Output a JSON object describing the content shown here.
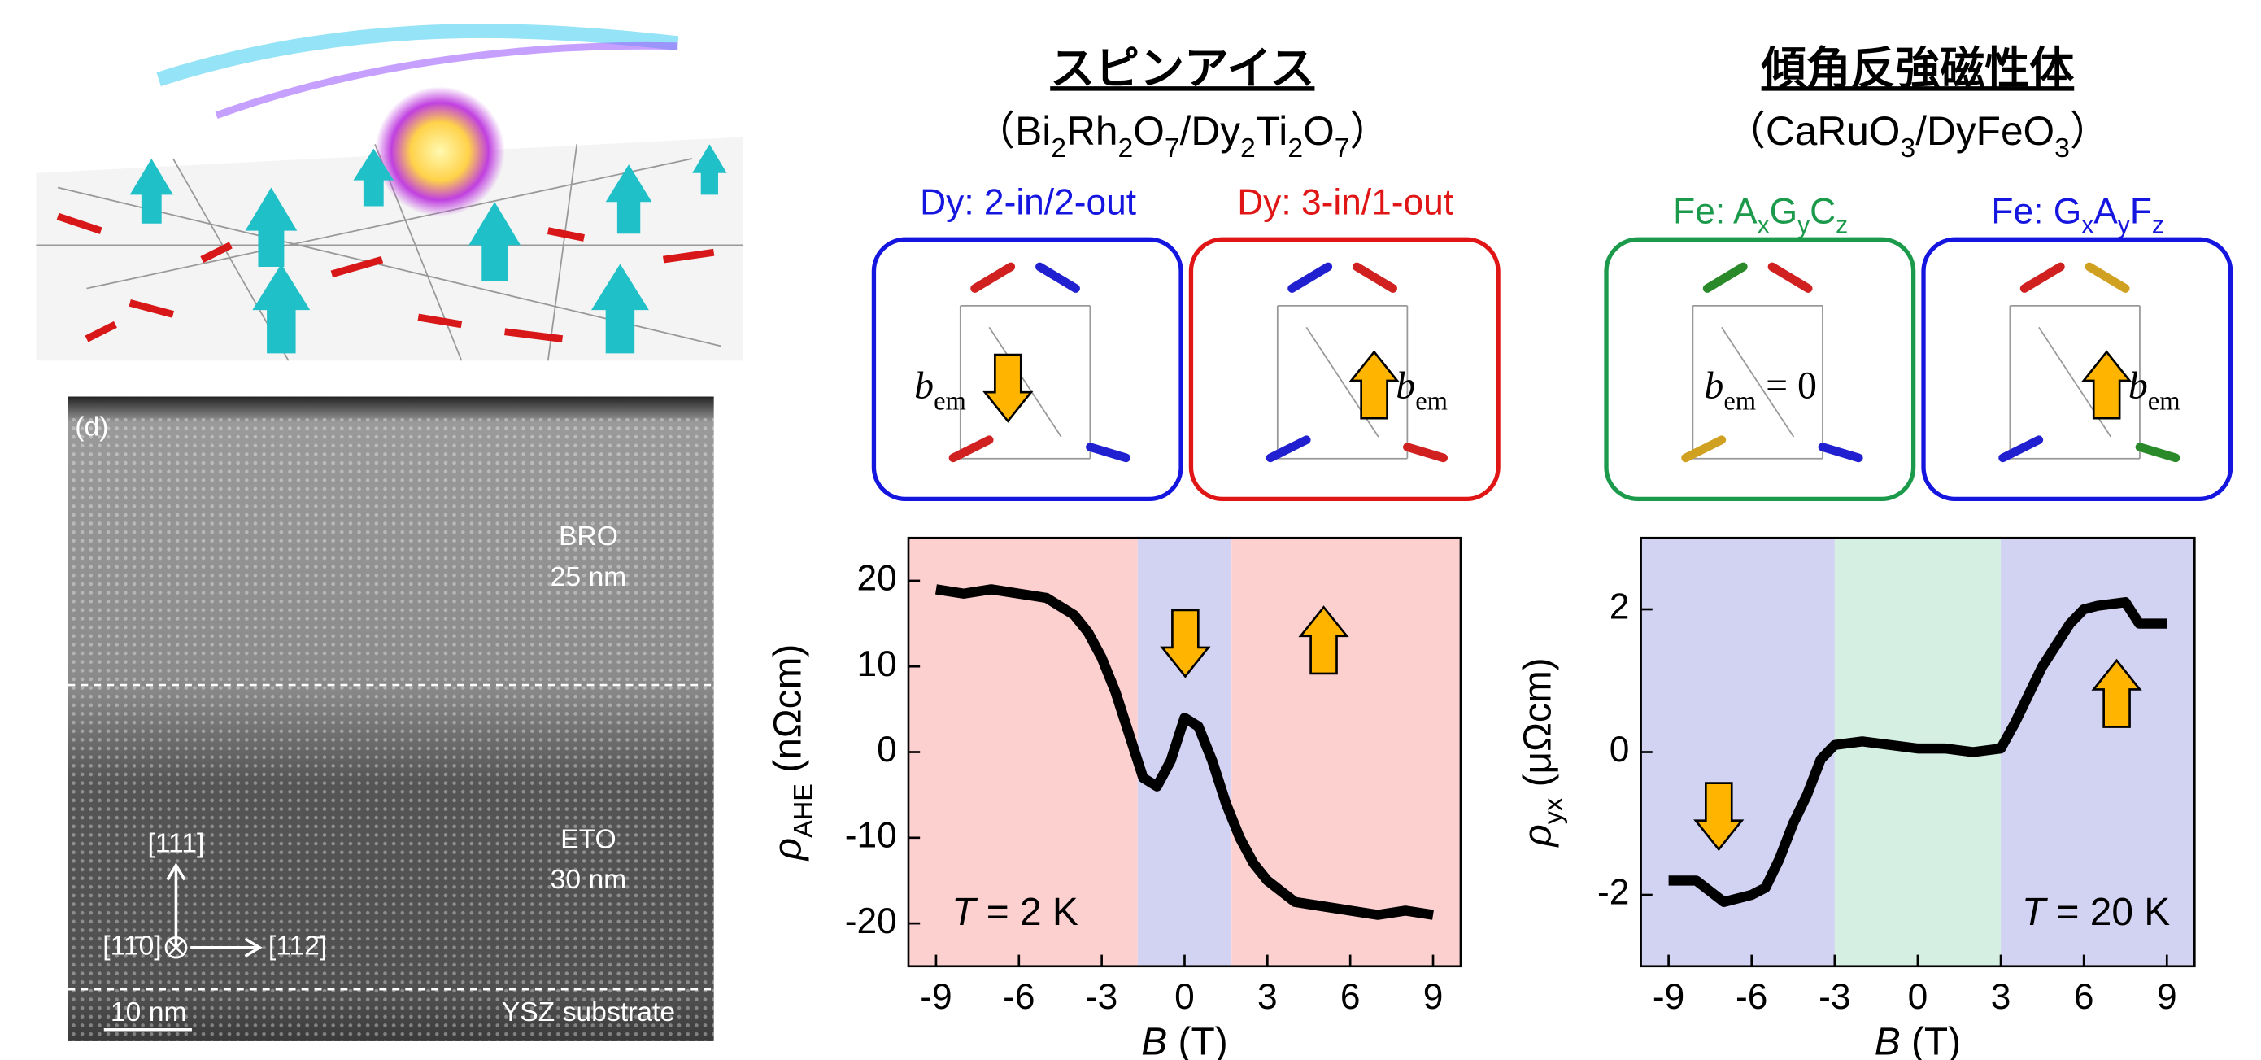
{
  "figure": {
    "micrograph": {
      "panel": "(d)",
      "layer1": "BRO",
      "layer1_thickness": "25 nm",
      "layer2": "ETO",
      "layer2_thickness": "30 nm",
      "substrate": "YSZ substrate",
      "scale_bar": "10 nm",
      "dir_up": "[111]",
      "dir_left": "[11̄0]",
      "dir_right": "[112̄]"
    },
    "groups": [
      {
        "title": "スピンアイス",
        "formula": [
          "（Bi",
          "2",
          "Rh",
          "2",
          "O",
          "7",
          "/Dy",
          "2",
          "Ti",
          "2",
          "O",
          "7",
          "）"
        ],
        "states": [
          {
            "label": [
              "Dy: 2-in/2-out"
            ],
            "color": "#1515e0",
            "bem": [
              "b",
              "em"
            ]
          },
          {
            "label": [
              "Dy: 3-in/1-out"
            ],
            "color": "#e01515",
            "bem": [
              "b",
              "em"
            ]
          }
        ]
      },
      {
        "title": "傾角反強磁性体",
        "formula": [
          "（CaRuO",
          "3",
          "/DyFeO",
          "3",
          "）"
        ],
        "states": [
          {
            "label": [
              "Fe: A",
              "x",
              "G",
              "y",
              "C",
              "z"
            ],
            "color": "#1a9a4a",
            "bem": [
              "b",
              "em",
              " = 0"
            ]
          },
          {
            "label": [
              "Fe: G",
              "x",
              "A",
              "y",
              "F",
              "z"
            ],
            "color": "#1515e0",
            "bem": [
              "b",
              "em"
            ]
          }
        ]
      }
    ]
  },
  "chart_data": [
    {
      "type": "line",
      "color": "#000000",
      "x": [
        -9,
        -8,
        -7,
        -6,
        -5,
        -4,
        -3.5,
        -3,
        -2.5,
        -2,
        -1.5,
        -1,
        -0.5,
        0,
        0.5,
        1,
        1.5,
        2,
        2.5,
        3,
        4,
        5,
        6,
        7,
        8,
        9
      ],
      "values": [
        19,
        18.5,
        19,
        18.5,
        18,
        16,
        14,
        11,
        7,
        2,
        -3,
        -4,
        -1,
        4,
        3,
        -1,
        -6,
        -10,
        -13,
        -15,
        -17.5,
        -18,
        -18.5,
        -19,
        -18.5,
        -19
      ],
      "xlim": [
        -10,
        10
      ],
      "ylim": [
        -25,
        25
      ],
      "xticks": [
        -9,
        -6,
        -3,
        0,
        3,
        6,
        9
      ],
      "yticks": [
        -20,
        -10,
        0,
        10,
        20
      ],
      "regions": [
        {
          "from": -10,
          "to": -1.7,
          "color": "#fdd0d0"
        },
        {
          "from": -1.7,
          "to": 1.7,
          "color": "#d2d2f3"
        },
        {
          "from": 1.7,
          "to": 10,
          "color": "#fdd0d0"
        }
      ],
      "ylabel": [
        "ρ",
        "AHE",
        " (nΩcm)"
      ],
      "xlabel": [
        "B",
        " (T)"
      ],
      "annotation": [
        "T",
        " = 2 K"
      ]
    },
    {
      "type": "line",
      "color": "#000000",
      "x": [
        -9,
        -8,
        -7,
        -6,
        -5.5,
        -5,
        -4.5,
        -4,
        -3.5,
        -3,
        -2,
        -1,
        0,
        1,
        2,
        3,
        3.5,
        4,
        4.5,
        5,
        5.5,
        6,
        6.5,
        7.5,
        8,
        9
      ],
      "values": [
        -1.8,
        -1.8,
        -2.1,
        -2,
        -1.9,
        -1.5,
        -1,
        -0.6,
        -0.1,
        0.1,
        0.15,
        0.1,
        0.05,
        0.05,
        0,
        0.05,
        0.4,
        0.8,
        1.2,
        1.5,
        1.8,
        2,
        2.05,
        2.1,
        1.8,
        1.8
      ],
      "xlim": [
        -10,
        10
      ],
      "ylim": [
        -3,
        3
      ],
      "xticks": [
        -9,
        -6,
        -3,
        0,
        3,
        6,
        9
      ],
      "yticks": [
        -2,
        0,
        2
      ],
      "regions": [
        {
          "from": -10,
          "to": -3,
          "color": "#d2d2f3"
        },
        {
          "from": -3,
          "to": 3,
          "color": "#d6efe3"
        },
        {
          "from": 3,
          "to": 10,
          "color": "#d2d2f3"
        }
      ],
      "ylabel": [
        "ρ",
        "yx",
        " (μΩcm)"
      ],
      "xlabel": [
        "B",
        " (T)"
      ],
      "annotation": [
        "T",
        " = 20 K"
      ]
    }
  ]
}
